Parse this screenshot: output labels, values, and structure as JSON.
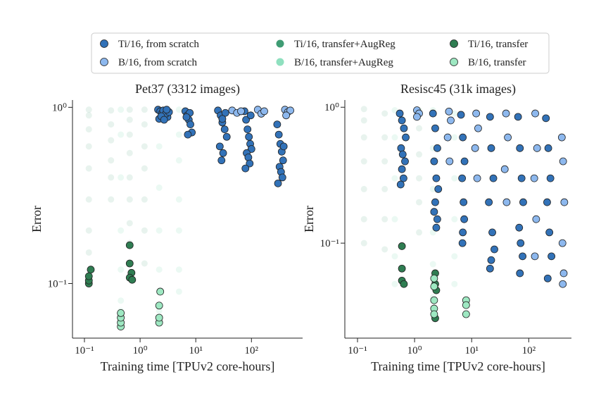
{
  "chart_data": [
    {
      "type": "scatter",
      "title": "Pet37 (3312 images)",
      "x_label": "Training time [TPUv2 core-hours]",
      "y_label": "Error",
      "xlog": true,
      "ylog": true,
      "xlim": [
        0.061,
        830
      ],
      "ylim": [
        0.049,
        1.1
      ],
      "xticks": [
        {
          "value": 0.1,
          "label": "10⁻¹"
        },
        {
          "value": 1,
          "label": "10⁰"
        },
        {
          "value": 10,
          "label": "10¹"
        },
        {
          "value": 100,
          "label": "10²"
        }
      ],
      "yticks": [
        {
          "value": 0.1,
          "label": "10⁻¹"
        },
        {
          "value": 1,
          "label": "10⁰"
        }
      ],
      "series": [
        {
          "name": "Ti/16, from scratch",
          "color": "#3272b8",
          "opacity": 1,
          "x": [
            2.1,
            2.3,
            2.5,
            2.8,
            3.1,
            2.2,
            2.6,
            2.9,
            3.3,
            2.4,
            2.7,
            3.0,
            6.5,
            7,
            7.5,
            8,
            8.5,
            7.2,
            7.8,
            6.8,
            25,
            28,
            30,
            33,
            36,
            27,
            31,
            29,
            34,
            30,
            75,
            80,
            85,
            90,
            95,
            100,
            82,
            88,
            93,
            78,
            97,
            290,
            310,
            330,
            350,
            370,
            320,
            340,
            360,
            300,
            380
          ],
          "values": [
            0.97,
            0.95,
            0.93,
            0.9,
            0.88,
            0.86,
            0.96,
            0.92,
            0.94,
            0.89,
            0.85,
            0.97,
            0.95,
            0.9,
            0.85,
            0.8,
            0.72,
            0.7,
            0.93,
            0.88,
            0.96,
            0.9,
            0.82,
            0.75,
            0.68,
            0.6,
            0.55,
            0.5,
            0.93,
            0.86,
            0.95,
            0.85,
            0.75,
            0.68,
            0.62,
            0.58,
            0.55,
            0.52,
            0.48,
            0.45,
            0.9,
            0.8,
            0.7,
            0.62,
            0.56,
            0.5,
            0.46,
            0.43,
            0.4,
            0.37,
            0.6
          ]
        },
        {
          "name": "B/16, from scratch",
          "color": "#8db8ee",
          "opacity": 1,
          "x": [
            45,
            55,
            65,
            130,
            150,
            170,
            400,
            450,
            500,
            420
          ],
          "values": [
            0.96,
            0.93,
            0.95,
            0.97,
            0.92,
            0.95,
            0.97,
            0.94,
            0.96,
            0.9
          ]
        },
        {
          "name": "Ti/16, transfer+AugReg",
          "color": "#3f9c74",
          "opacity": 0.12,
          "x": [
            0.12,
            0.12,
            0.12,
            0.12,
            0.12,
            0.12,
            0.12,
            0.12,
            0.3,
            0.3,
            0.3,
            0.3,
            0.3,
            0.3,
            0.65,
            0.65,
            0.65,
            0.65,
            0.65,
            0.65,
            0.65,
            0.65,
            1.2,
            1.2,
            1.2,
            1.2,
            1.2,
            1.2,
            1.2
          ],
          "values": [
            0.97,
            0.9,
            0.75,
            0.6,
            0.45,
            0.3,
            0.2,
            0.15,
            0.96,
            0.8,
            0.65,
            0.5,
            0.4,
            0.3,
            0.97,
            0.85,
            0.7,
            0.55,
            0.4,
            0.3,
            0.22,
            0.17,
            0.97,
            0.8,
            0.6,
            0.45,
            0.3,
            0.2,
            0.13
          ]
        },
        {
          "name": "B/16, transfer+AugReg",
          "color": "#8fe0bf",
          "opacity": 0.18,
          "x": [
            0.45,
            0.45,
            0.45,
            0.45,
            0.45,
            0.45,
            0.45,
            2.2,
            2.2,
            2.2,
            2.2,
            2.2,
            2.2,
            2.2,
            5,
            5,
            5,
            5,
            5,
            5,
            5
          ],
          "values": [
            0.97,
            0.7,
            0.4,
            0.2,
            0.12,
            0.08,
            0.07,
            0.97,
            0.6,
            0.35,
            0.2,
            0.12,
            0.09,
            0.07,
            0.97,
            0.7,
            0.5,
            0.3,
            0.2,
            0.12,
            0.09
          ]
        },
        {
          "name": "Ti/16, transfer",
          "color": "#2f7d52",
          "opacity": 1,
          "x": [
            0.12,
            0.12,
            0.12,
            0.13,
            0.65,
            0.65,
            0.7,
            0.65,
            0.72
          ],
          "values": [
            0.1,
            0.104,
            0.11,
            0.12,
            0.165,
            0.13,
            0.115,
            0.108,
            0.105
          ]
        },
        {
          "name": "B/16, transfer",
          "color": "#9ee8c2",
          "opacity": 1,
          "x": [
            0.45,
            0.45,
            0.45,
            0.45,
            2.2,
            2.2,
            2.2,
            2.3
          ],
          "values": [
            0.057,
            0.06,
            0.064,
            0.068,
            0.06,
            0.064,
            0.075,
            0.09
          ]
        }
      ]
    },
    {
      "type": "scatter",
      "title": "Resisc45 (31k images)",
      "x_label": "Training time [TPUv2 core-hours]",
      "y_label": "Error",
      "xlog": true,
      "ylog": true,
      "xlim": [
        0.06,
        560
      ],
      "ylim": [
        0.02,
        1.13
      ],
      "xticks": [
        {
          "value": 0.1,
          "label": "10⁻¹"
        },
        {
          "value": 1,
          "label": "10⁰"
        },
        {
          "value": 10,
          "label": "10¹"
        },
        {
          "value": 100,
          "label": "10²"
        }
      ],
      "yticks": [
        {
          "value": 0.1,
          "label": "10⁻¹"
        },
        {
          "value": 1,
          "label": "10⁰"
        }
      ],
      "series": [
        {
          "color": "#3272b8",
          "opacity": 1,
          "x": [
            0.55,
            0.6,
            0.65,
            0.7,
            0.58,
            0.62,
            0.68,
            0.6,
            0.64,
            0.57,
            2.1,
            2.3,
            2.5,
            2.2,
            2.4,
            2.6,
            2.3,
            2.2,
            2.5,
            2.4,
            6.5,
            7,
            7.5,
            6.8,
            7.2,
            7.4,
            7,
            6.9,
            21,
            22,
            24,
            20,
            23,
            25,
            22,
            21,
            65,
            70,
            75,
            80,
            68,
            72,
            78,
            70,
            200,
            220,
            240,
            210,
            230,
            250,
            215
          ],
          "values": [
            0.9,
            0.8,
            0.7,
            0.6,
            0.5,
            0.45,
            0.4,
            0.35,
            0.3,
            0.27,
            0.9,
            0.7,
            0.5,
            0.4,
            0.3,
            0.25,
            0.2,
            0.17,
            0.15,
            0.13,
            0.88,
            0.6,
            0.4,
            0.3,
            0.2,
            0.15,
            0.12,
            0.1,
            0.85,
            0.5,
            0.3,
            0.2,
            0.12,
            0.09,
            0.075,
            0.065,
            0.85,
            0.5,
            0.3,
            0.2,
            0.13,
            0.1,
            0.08,
            0.06,
            0.83,
            0.5,
            0.3,
            0.2,
            0.12,
            0.08,
            0.055
          ]
        },
        {
          "color": "#8db8ee",
          "opacity": 1,
          "x": [
            1.1,
            1.2,
            1.1,
            4,
            4.3,
            3.8,
            4.1,
            12,
            13,
            11.5,
            12.5,
            40,
            43,
            38,
            41,
            130,
            140,
            125,
            135,
            128,
            380,
            400,
            420,
            390,
            410,
            395
          ],
          "values": [
            0.95,
            0.9,
            0.85,
            0.93,
            0.8,
            0.6,
            0.4,
            0.9,
            0.7,
            0.5,
            0.3,
            0.9,
            0.6,
            0.35,
            0.2,
            0.9,
            0.5,
            0.3,
            0.15,
            0.08,
            0.6,
            0.4,
            0.2,
            0.1,
            0.06,
            0.05
          ]
        },
        {
          "color": "#3f9c74",
          "opacity": 0.12,
          "x": [
            0.13,
            0.13,
            0.13,
            0.13,
            0.13,
            0.13,
            0.13,
            0.3,
            0.3,
            0.3,
            0.3,
            0.3,
            0.3,
            1.2,
            1.2,
            1.2,
            1.2,
            1.2,
            1.2
          ],
          "values": [
            0.97,
            0.8,
            0.6,
            0.4,
            0.25,
            0.15,
            0.1,
            0.9,
            0.6,
            0.4,
            0.25,
            0.15,
            0.09,
            0.95,
            0.7,
            0.45,
            0.3,
            0.2,
            0.12
          ]
        },
        {
          "color": "#8fe0bf",
          "opacity": 0.18,
          "x": [
            0.45,
            0.45,
            0.45,
            0.45,
            0.45,
            0.45,
            2.1,
            2.1,
            2.1,
            2.1,
            2.1,
            2.1,
            5,
            5,
            5,
            5,
            5,
            5
          ],
          "values": [
            0.95,
            0.6,
            0.3,
            0.15,
            0.08,
            0.05,
            0.95,
            0.5,
            0.25,
            0.12,
            0.07,
            0.04,
            0.9,
            0.6,
            0.3,
            0.15,
            0.08,
            0.05
          ]
        },
        {
          "color": "#2f7d52",
          "opacity": 1,
          "x": [
            0.6,
            0.6,
            0.6,
            0.65,
            2.3,
            2.3,
            2.4,
            2.3
          ],
          "values": [
            0.095,
            0.065,
            0.053,
            0.05,
            0.06,
            0.05,
            0.045,
            0.028
          ]
        },
        {
          "color": "#9ee8c2",
          "opacity": 1,
          "x": [
            2.2,
            2.2,
            2.2,
            2.2,
            2.2,
            8,
            8,
            8
          ],
          "values": [
            0.055,
            0.048,
            0.038,
            0.033,
            0.03,
            0.038,
            0.035,
            0.03
          ]
        }
      ]
    }
  ]
}
